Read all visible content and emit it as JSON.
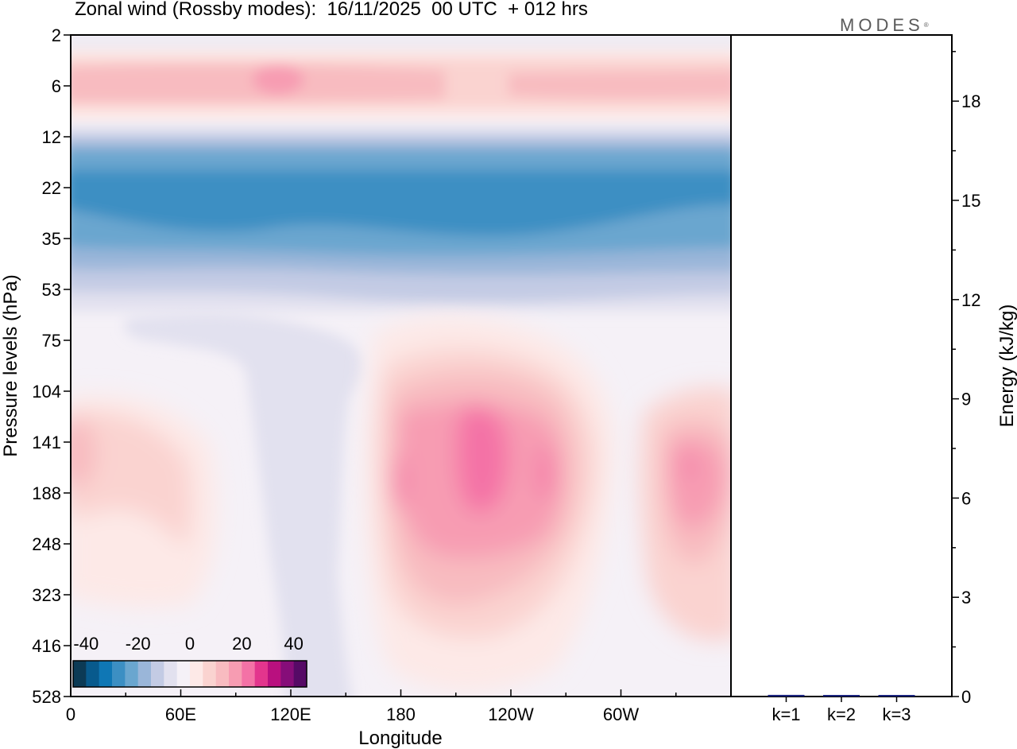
{
  "header": {
    "title": "Zonal wind (Rossby modes):  16/11/2025  00 UTC  + 012 hrs",
    "logo": "MODES",
    "logo_mark": "®"
  },
  "chart_data": [
    {
      "type": "heatmap",
      "title": "Zonal wind (Rossby modes):  16/11/2025  00 UTC  + 012 hrs",
      "xlabel": "Longitude",
      "ylabel": "Pressure levels (hPa)",
      "xticks": [
        "0",
        "60E",
        "120E",
        "180",
        "120W",
        "60W"
      ],
      "xtick_degrees": [
        0,
        60,
        120,
        180,
        240,
        300
      ],
      "xlim_degrees": [
        0,
        360
      ],
      "yticks": [
        "2",
        "6",
        "12",
        "22",
        "35",
        "53",
        "75",
        "104",
        "141",
        "188",
        "248",
        "323",
        "416",
        "528"
      ],
      "colorbar": {
        "labels": [
          "-40",
          "-20",
          "0",
          "20",
          "40"
        ],
        "levels": [
          -40,
          -35,
          -30,
          -25,
          -20,
          -15,
          -10,
          -5,
          0,
          5,
          10,
          15,
          20,
          25,
          30,
          35,
          40
        ],
        "colors": [
          "#0c3a55",
          "#085a8d",
          "#0f77b5",
          "#3c8fc3",
          "#6aa6cf",
          "#9ab6d9",
          "#c3cbe4",
          "#e2e1ef",
          "#f5f1f7",
          "#fde9e7",
          "#fad3d0",
          "#f8bbc0",
          "#f79cb2",
          "#f472a6",
          "#e3358d",
          "#b9107f",
          "#860d79",
          "#560a66"
        ]
      },
      "approximate_features": [
        {
          "region": "2-12 hPa, all longitudes",
          "wind": "weak westerly 5 to 15, peak about 20 near 120E"
        },
        {
          "region": "12-53 hPa, all longitudes",
          "wind": "easterly jet, minimum about -20 to -25 near 22-35 hPa"
        },
        {
          "region": "53-528 hPa, 30E-160E",
          "wind": "weak easterly about -3"
        },
        {
          "region": "75-416 hPa, 180-130W",
          "wind": "westerly maximum about 25 near 141 hPa, 150W"
        },
        {
          "region": "104-323 hPa, 0-40E",
          "wind": "weak westerly about 5 to 10"
        },
        {
          "region": "104-323 hPa, 40W-0",
          "wind": "westerly maximum about 20 near 141 hPa"
        }
      ]
    },
    {
      "type": "bar",
      "categories": [
        "k=1",
        "k=2",
        "k=3"
      ],
      "values": [
        0.05,
        0.02,
        0.01
      ],
      "ylabel": "Energy (kJ/kg)",
      "ylim": [
        0,
        20
      ],
      "yticks": [
        "0",
        "3",
        "6",
        "9",
        "12",
        "15",
        "18"
      ],
      "ytick_values": [
        0,
        3,
        6,
        9,
        12,
        15,
        18
      ],
      "bar_colors": [
        "#1a237e",
        "#1a237e",
        "#1a237e"
      ]
    }
  ]
}
